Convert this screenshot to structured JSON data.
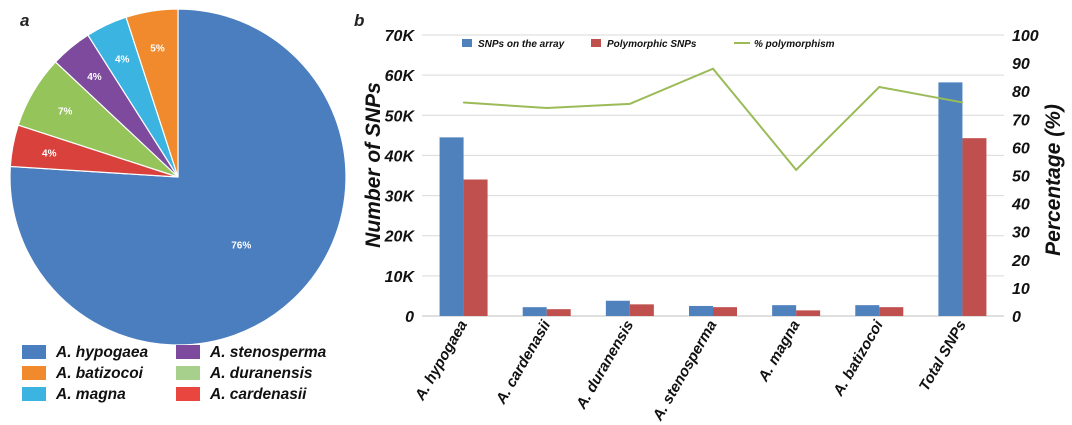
{
  "panel_a": "a",
  "panel_b": "b",
  "colors": {
    "blue": "#4a7ebf",
    "orange": "#f08a2c",
    "cyan": "#3bb4e2",
    "purple": "#7d4a9e",
    "lightgreen": "#94c45a",
    "red": "#d9413c",
    "bar_blue": "#4f81bd",
    "bar_red": "#c0504d",
    "line_green": "#9bbb59",
    "grid": "#d9d9d9"
  },
  "chart_data": [
    {
      "type": "pie",
      "slices": [
        {
          "label": "A. hypogaea",
          "value": 76,
          "pct_label": "76%",
          "color": "#4a7ebf"
        },
        {
          "label": "A. cardenasii",
          "value": 4,
          "pct_label": "4%",
          "color": "#d9413c"
        },
        {
          "label": "A. duranensis",
          "value": 7,
          "pct_label": "7%",
          "color": "#94c45a"
        },
        {
          "label": "A. stenosperma",
          "value": 4,
          "pct_label": "4%",
          "color": "#7d4a9e"
        },
        {
          "label": "A. magna",
          "value": 4,
          "pct_label": "4%",
          "color": "#3bb4e2"
        },
        {
          "label": "A. batizocoi",
          "value": 5,
          "pct_label": "5%",
          "color": "#f08a2c"
        }
      ],
      "legend": [
        {
          "label": "A. hypogaea",
          "color": "#4a7ebf"
        },
        {
          "label": "A. stenosperma",
          "color": "#7d4a9e"
        },
        {
          "label": "A. batizocoi",
          "color": "#f08a2c"
        },
        {
          "label": "A. duranensis",
          "color": "#a8d08d"
        },
        {
          "label": "A. magna",
          "color": "#3bb4e2"
        },
        {
          "label": "A. cardenasii",
          "color": "#e8463f"
        }
      ]
    },
    {
      "type": "bar",
      "categories": [
        "A. hypogaea",
        "A. cardenasii",
        "A. duranensis",
        "A. stenosperma",
        "A. magna",
        "A. batizocoi",
        "Total SNPs"
      ],
      "series": [
        {
          "name": "SNPs on the array",
          "kind": "bar",
          "axis": "left",
          "color": "#4f81bd",
          "values": [
            44500,
            2200,
            3800,
            2500,
            2700,
            2700,
            58200
          ]
        },
        {
          "name": "Polymorphic SNPs",
          "kind": "bar",
          "axis": "left",
          "color": "#c0504d",
          "values": [
            34000,
            1700,
            2900,
            2200,
            1400,
            2200,
            44300
          ]
        },
        {
          "name": "% polymorphism",
          "kind": "line",
          "axis": "right",
          "color": "#9bbb59",
          "values": [
            76,
            74,
            75.5,
            88,
            52,
            81.5,
            76
          ]
        }
      ],
      "ylabel": "Number of SNPs",
      "y2label": "Percentage (%)",
      "ylim": [
        0,
        70000
      ],
      "y2lim": [
        0,
        100
      ],
      "yticks": [
        "0",
        "10K",
        "20K",
        "30K",
        "40K",
        "50K",
        "60K",
        "70K"
      ],
      "y2ticks": [
        "0",
        "10",
        "20",
        "30",
        "40",
        "50",
        "60",
        "70",
        "80",
        "90",
        "100"
      ],
      "grid": true,
      "legend_position": "top"
    }
  ]
}
